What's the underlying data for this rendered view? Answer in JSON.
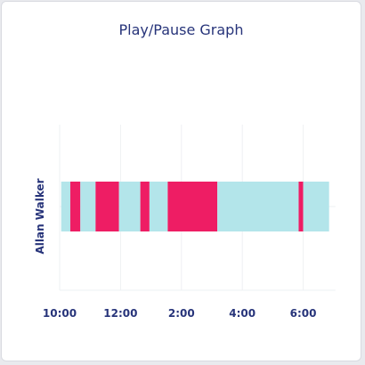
{
  "chart_data": {
    "type": "bar",
    "title": "Play/Pause Graph",
    "xlabel": "",
    "ylabel": "Allan Walker",
    "x_ticks": [
      "10:00",
      "12:00",
      "2:00",
      "4:00",
      "6:00"
    ],
    "x_tick_hours": [
      0,
      2,
      4,
      6,
      8
    ],
    "xlim_hours": [
      0,
      9
    ],
    "grid": true,
    "legend": "none",
    "colors": {
      "play": "#b3e5ea",
      "pause": "#ee1d64",
      "text": "#27347a",
      "grid": "#eef0f3"
    },
    "series": [
      {
        "category": "Allan Walker",
        "segments": [
          {
            "start": 0.05,
            "end": 0.35,
            "state": "play"
          },
          {
            "start": 0.35,
            "end": 0.68,
            "state": "pause"
          },
          {
            "start": 0.68,
            "end": 1.18,
            "state": "play"
          },
          {
            "start": 1.18,
            "end": 1.95,
            "state": "pause"
          },
          {
            "start": 1.95,
            "end": 2.65,
            "state": "play"
          },
          {
            "start": 2.65,
            "end": 2.95,
            "state": "pause"
          },
          {
            "start": 2.95,
            "end": 3.55,
            "state": "play"
          },
          {
            "start": 3.55,
            "end": 5.18,
            "state": "pause"
          },
          {
            "start": 5.18,
            "end": 7.85,
            "state": "play"
          },
          {
            "start": 7.85,
            "end": 8.0,
            "state": "pause"
          },
          {
            "start": 8.0,
            "end": 8.85,
            "state": "play"
          }
        ]
      }
    ]
  }
}
